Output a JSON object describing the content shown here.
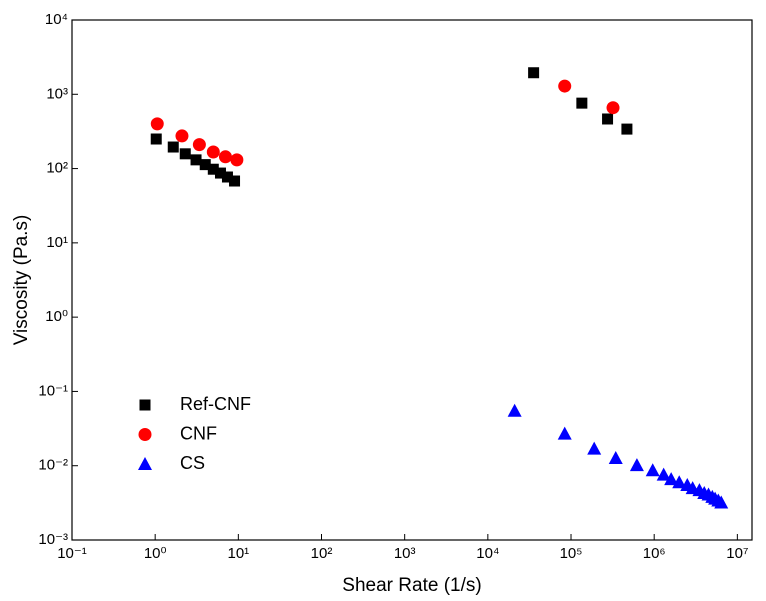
{
  "chart_data": {
    "type": "scatter",
    "xlabel": "Shear Rate (1/s)",
    "ylabel": "Viscosity (Pa.s)",
    "xscale": "log",
    "yscale": "log",
    "xlim": [
      0.1,
      15000000
    ],
    "ylim": [
      0.001,
      10000
    ],
    "xticks": [
      {
        "value": 0.1,
        "label": "10⁻¹"
      },
      {
        "value": 1,
        "label": "10⁰"
      },
      {
        "value": 10,
        "label": "10¹"
      },
      {
        "value": 100,
        "label": "10²"
      },
      {
        "value": 1000,
        "label": "10³"
      },
      {
        "value": 10000,
        "label": "10⁴"
      },
      {
        "value": 100000,
        "label": "10⁵"
      },
      {
        "value": 1000000,
        "label": "10⁶"
      },
      {
        "value": 10000000,
        "label": "10⁷"
      }
    ],
    "yticks": [
      {
        "value": 0.001,
        "label": "10⁻³"
      },
      {
        "value": 0.01,
        "label": "10⁻²"
      },
      {
        "value": 0.1,
        "label": "10⁻¹"
      },
      {
        "value": 1,
        "label": "10⁰"
      },
      {
        "value": 10,
        "label": "10¹"
      },
      {
        "value": 100,
        "label": "10²"
      },
      {
        "value": 1000,
        "label": "10³"
      },
      {
        "value": 10000,
        "label": "10⁴"
      }
    ],
    "legend_position": "lower left",
    "series": [
      {
        "name": "Ref-CNF",
        "color": "#000000",
        "marker": "square",
        "x": [
          1.03,
          1.65,
          2.3,
          3.1,
          4.0,
          5.0,
          6.1,
          7.4,
          9.0,
          35500,
          135000,
          275000,
          470000
        ],
        "values": [
          250,
          195,
          158,
          131,
          113,
          98,
          87,
          77,
          68,
          1950,
          760,
          465,
          340
        ]
      },
      {
        "name": "CNF",
        "color": "#ff0000",
        "marker": "circle",
        "x": [
          1.06,
          2.1,
          3.4,
          5.0,
          7.0,
          9.6,
          84000,
          320000
        ],
        "values": [
          400,
          275,
          210,
          167,
          144,
          131,
          1290,
          660
        ]
      },
      {
        "name": "CS",
        "color": "#0000ff",
        "marker": "triangle",
        "x": [
          21000,
          84000,
          190000,
          345000,
          620000,
          960000,
          1300000,
          1600000,
          2000000,
          2500000,
          2900000,
          3500000,
          4000000,
          4500000,
          5000000,
          5400000,
          5900000,
          6400000
        ],
        "values": [
          0.055,
          0.027,
          0.017,
          0.0127,
          0.0102,
          0.0087,
          0.0076,
          0.0066,
          0.006,
          0.0055,
          0.005,
          0.0047,
          0.0043,
          0.0041,
          0.0038,
          0.0036,
          0.0034,
          0.0032
        ]
      }
    ]
  }
}
